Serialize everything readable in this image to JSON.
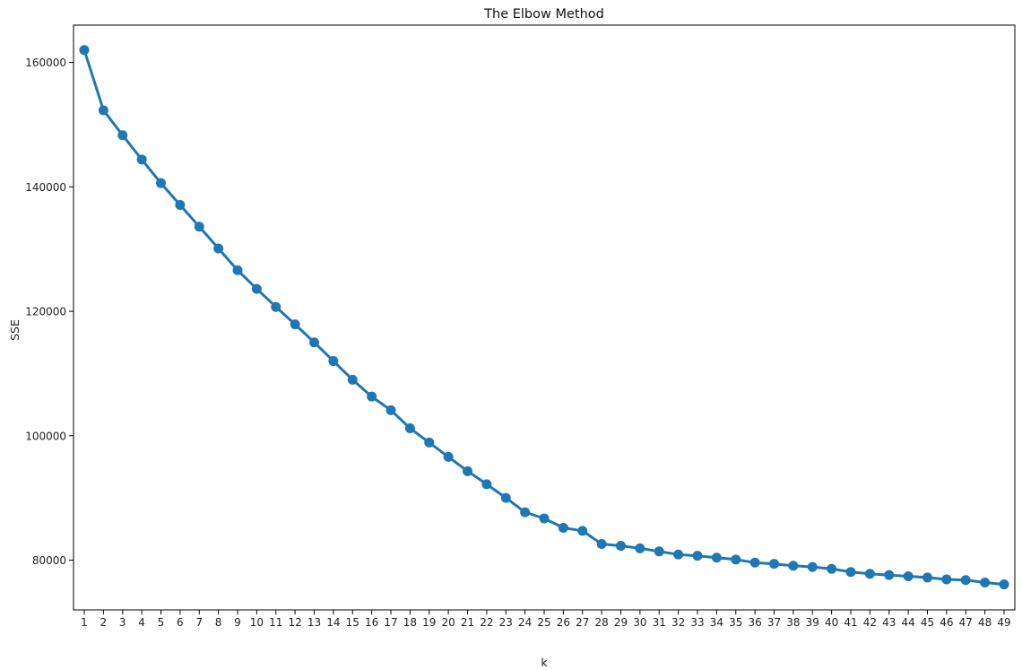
{
  "chart_data": {
    "type": "line",
    "title": "The Elbow Method",
    "xlabel": "k",
    "ylabel": "SSE",
    "grid": false,
    "legend": "none",
    "marker": "circle",
    "color": "#1f77b4",
    "ylim": [
      72000,
      166000
    ],
    "yticks": [
      80000,
      100000,
      120000,
      140000,
      160000
    ],
    "ytick_labels": [
      "80000",
      "100000",
      "120000",
      "140000",
      "160000"
    ],
    "x": [
      1,
      2,
      3,
      4,
      5,
      6,
      7,
      8,
      9,
      10,
      11,
      12,
      13,
      14,
      15,
      16,
      17,
      18,
      19,
      20,
      21,
      22,
      23,
      24,
      25,
      26,
      27,
      28,
      29,
      30,
      31,
      32,
      33,
      34,
      35,
      36,
      37,
      38,
      39,
      40,
      41,
      42,
      43,
      44,
      45,
      46,
      47,
      48,
      49
    ],
    "x_labels": [
      "1",
      "2",
      "3",
      "4",
      "5",
      "6",
      "7",
      "8",
      "9",
      "10",
      "11",
      "12",
      "13",
      "14",
      "15",
      "16",
      "17",
      "18",
      "19",
      "20",
      "21",
      "22",
      "23",
      "24",
      "25",
      "26",
      "27",
      "28",
      "29",
      "30",
      "31",
      "32",
      "33",
      "34",
      "35",
      "36",
      "37",
      "38",
      "39",
      "40",
      "41",
      "42",
      "43",
      "44",
      "45",
      "46",
      "47",
      "48",
      "49"
    ],
    "series": [
      {
        "values": [
          162000,
          152300,
          148300,
          144400,
          140600,
          137100,
          133600,
          130100,
          126600,
          123600,
          120700,
          117900,
          115000,
          112000,
          109000,
          106300,
          104100,
          101200,
          98900,
          96600,
          94300,
          92200,
          90000,
          87700,
          86700,
          85200,
          84700,
          82600,
          82300,
          81900,
          81400,
          80900,
          80700,
          80400,
          80100,
          79600,
          79400,
          79100,
          78900,
          78600,
          78100,
          77800,
          77600,
          77400,
          77200,
          76900,
          76800,
          76400,
          76100
        ]
      }
    ]
  }
}
